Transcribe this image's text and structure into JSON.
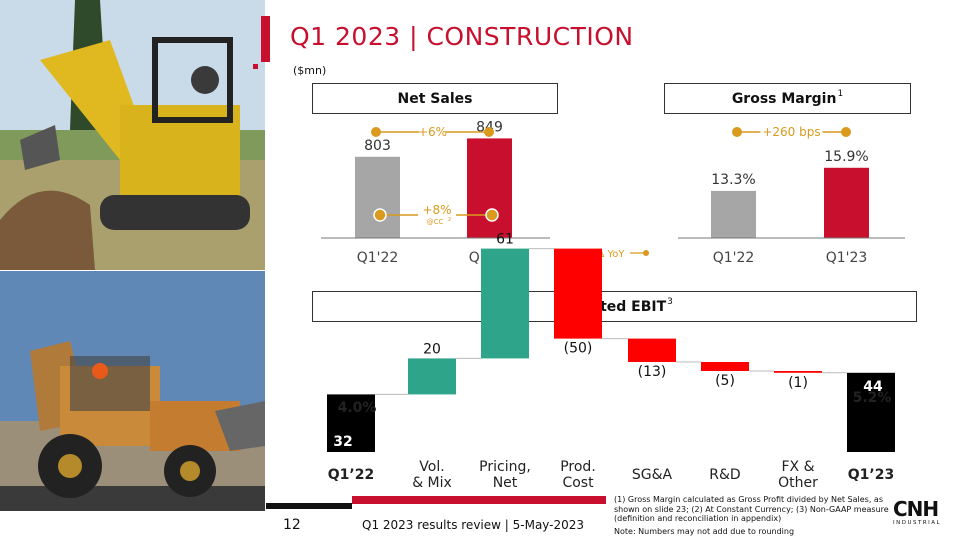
{
  "header": {
    "title": "Q1 2023 | CONSTRUCTION",
    "unit": "($mn)"
  },
  "panels": {
    "net_sales_title": "Net Sales",
    "gross_margin_title": "Gross Margin",
    "gross_margin_sup": "1",
    "ebit_title": "Adjusted EBIT",
    "ebit_sup": "3",
    "yoy_label": "Δ YoY"
  },
  "chart_data": [
    {
      "type": "bar",
      "title": "Net Sales",
      "categories": [
        "Q1'22",
        "Q1'23"
      ],
      "values": [
        803,
        849
      ],
      "value_labels": [
        "803",
        "849"
      ],
      "colors": [
        "#a6a6a6",
        "#c8102e"
      ],
      "change_label": "+6%",
      "cc_label": "+8%",
      "cc_sub": "@CC",
      "cc_sup": "2"
    },
    {
      "type": "bar",
      "title": "Gross Margin",
      "categories": [
        "Q1'22",
        "Q1'23"
      ],
      "values": [
        13.3,
        15.9
      ],
      "value_labels": [
        "13.3%",
        "15.9%"
      ],
      "colors": [
        "#a6a6a6",
        "#c8102e"
      ],
      "change_label": "+260 bps"
    },
    {
      "type": "bar",
      "title": "Adjusted EBIT",
      "subtype": "waterfall",
      "categories": [
        "Q1’22",
        "Vol.\n& Mix",
        "Pricing,\nNet",
        "Prod.\nCost",
        "SG&A",
        "R&D",
        "FX &\nOther",
        "Q1’23"
      ],
      "values": [
        32,
        20,
        61,
        -50,
        -13,
        -5,
        -1,
        44
      ],
      "value_labels": [
        "32",
        "20",
        "61",
        "(50)",
        "(13)",
        "(5)",
        "(1)",
        "44"
      ],
      "kinds": [
        "total",
        "delta",
        "delta",
        "delta",
        "delta",
        "delta",
        "delta",
        "total"
      ],
      "margins": [
        "4.0%",
        "5.2%"
      ],
      "colors": {
        "total": "#000000",
        "positive": "#2ea58a",
        "negative": "#ff0000"
      }
    }
  ],
  "footer": {
    "page_number": "12",
    "text": "Q1 2023 results review | 5-May-2023",
    "footnotes": "(1) Gross Margin calculated as Gross Profit divided by Net Sales, as shown on slide 23; (2) At Constant Currency; (3) Non-GAAP measure (definition and reconciliation in appendix)",
    "note": "Note: Numbers may not add due to rounding",
    "logo": "CNH",
    "logo_sub": "INDUSTRIAL"
  }
}
